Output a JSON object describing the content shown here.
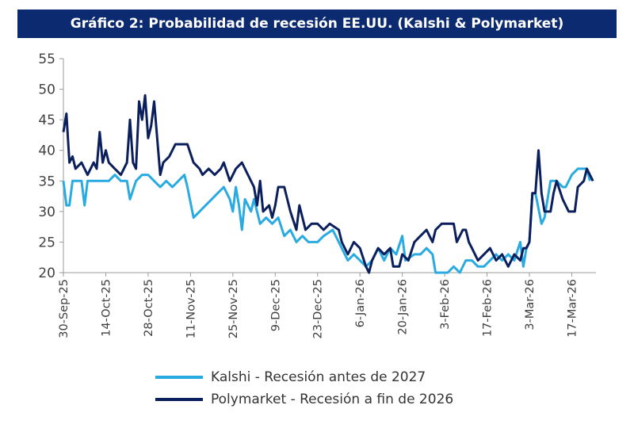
{
  "chart_data": {
    "type": "line",
    "title": "Gráfico 2: Probabilidad de recesión EE.UU. (Kalshi & Polymarket)",
    "xlabel": "",
    "ylabel": "",
    "ylim": [
      20,
      55
    ],
    "yticks": [
      "55",
      "50",
      "45",
      "40",
      "35",
      "30",
      "25",
      "20"
    ],
    "grid": false,
    "legend": "bottom",
    "x_tick_labels": [
      "30-Sep-25",
      "14-Oct-25",
      "28-Oct-25",
      "11-Nov-25",
      "25-Nov-25",
      "9-Dec-25",
      "23-Dec-25",
      "6-Jan-26",
      "20-Jan-26",
      "3-Feb-26",
      "17-Feb-26",
      "3-Mar-26",
      "17-Mar-26"
    ],
    "x_start": "2025-09-30",
    "x_end": "2026-03-25",
    "series": [
      {
        "name": "Kalshi - Recesión antes de 2027",
        "color": "#29abe2",
        "points": [
          [
            "2025-09-30",
            35
          ],
          [
            "2025-10-01",
            31
          ],
          [
            "2025-10-02",
            31
          ],
          [
            "2025-10-03",
            35
          ],
          [
            "2025-10-06",
            35
          ],
          [
            "2025-10-07",
            31
          ],
          [
            "2025-10-08",
            35
          ],
          [
            "2025-10-10",
            35
          ],
          [
            "2025-10-13",
            35
          ],
          [
            "2025-10-15",
            35
          ],
          [
            "2025-10-17",
            36
          ],
          [
            "2025-10-19",
            35
          ],
          [
            "2025-10-21",
            35
          ],
          [
            "2025-10-22",
            32
          ],
          [
            "2025-10-24",
            35
          ],
          [
            "2025-10-26",
            36
          ],
          [
            "2025-10-28",
            36
          ],
          [
            "2025-10-30",
            35
          ],
          [
            "2025-11-01",
            34
          ],
          [
            "2025-11-03",
            35
          ],
          [
            "2025-11-05",
            34
          ],
          [
            "2025-11-07",
            35
          ],
          [
            "2025-11-09",
            36
          ],
          [
            "2025-11-10",
            34
          ],
          [
            "2025-11-12",
            29
          ],
          [
            "2025-11-14",
            30
          ],
          [
            "2025-11-16",
            31
          ],
          [
            "2025-11-18",
            32
          ],
          [
            "2025-11-20",
            33
          ],
          [
            "2025-11-22",
            34
          ],
          [
            "2025-11-24",
            32
          ],
          [
            "2025-11-25",
            30
          ],
          [
            "2025-11-26",
            34
          ],
          [
            "2025-11-27",
            31
          ],
          [
            "2025-11-28",
            27
          ],
          [
            "2025-11-29",
            32
          ],
          [
            "2025-12-01",
            30
          ],
          [
            "2025-12-02",
            32
          ],
          [
            "2025-12-04",
            28
          ],
          [
            "2025-12-06",
            29
          ],
          [
            "2025-12-08",
            28
          ],
          [
            "2025-12-10",
            29
          ],
          [
            "2025-12-12",
            26
          ],
          [
            "2025-12-14",
            27
          ],
          [
            "2025-12-16",
            25
          ],
          [
            "2025-12-18",
            26
          ],
          [
            "2025-12-20",
            25
          ],
          [
            "2025-12-23",
            25
          ],
          [
            "2025-12-25",
            26
          ],
          [
            "2025-12-28",
            27
          ],
          [
            "2025-12-30",
            25
          ],
          [
            "2026-01-02",
            22
          ],
          [
            "2026-01-04",
            23
          ],
          [
            "2026-01-06",
            22
          ],
          [
            "2026-01-08",
            21
          ],
          [
            "2026-01-10",
            22
          ],
          [
            "2026-01-12",
            24
          ],
          [
            "2026-01-14",
            22
          ],
          [
            "2026-01-16",
            24
          ],
          [
            "2026-01-18",
            23
          ],
          [
            "2026-01-20",
            26
          ],
          [
            "2026-01-21",
            22
          ],
          [
            "2026-01-24",
            23
          ],
          [
            "2026-01-26",
            23
          ],
          [
            "2026-01-28",
            24
          ],
          [
            "2026-01-30",
            23
          ],
          [
            "2026-01-31",
            20
          ],
          [
            "2026-02-02",
            20
          ],
          [
            "2026-02-04",
            20
          ],
          [
            "2026-02-06",
            21
          ],
          [
            "2026-02-08",
            20
          ],
          [
            "2026-02-10",
            22
          ],
          [
            "2026-02-12",
            22
          ],
          [
            "2026-02-14",
            21
          ],
          [
            "2026-02-16",
            21
          ],
          [
            "2026-02-18",
            22
          ],
          [
            "2026-02-20",
            23
          ],
          [
            "2026-02-22",
            22
          ],
          [
            "2026-02-24",
            23
          ],
          [
            "2026-02-26",
            22
          ],
          [
            "2026-02-28",
            25
          ],
          [
            "2026-03-01",
            21
          ],
          [
            "2026-03-02",
            24
          ],
          [
            "2026-03-03",
            25
          ],
          [
            "2026-03-04",
            33
          ],
          [
            "2026-03-05",
            33
          ],
          [
            "2026-03-07",
            28
          ],
          [
            "2026-03-08",
            29
          ],
          [
            "2026-03-10",
            35
          ],
          [
            "2026-03-12",
            35
          ],
          [
            "2026-03-14",
            34
          ],
          [
            "2026-03-15",
            34
          ],
          [
            "2026-03-17",
            36
          ],
          [
            "2026-03-19",
            37
          ],
          [
            "2026-03-21",
            37
          ],
          [
            "2026-03-22",
            37
          ],
          [
            "2026-03-23",
            35
          ]
        ]
      },
      {
        "name": "Polymarket - Recesión a fin de 2026",
        "color": "#0b1f5c",
        "points": [
          [
            "2025-09-30",
            43
          ],
          [
            "2025-10-01",
            46
          ],
          [
            "2025-10-02",
            38
          ],
          [
            "2025-10-03",
            39
          ],
          [
            "2025-10-04",
            37
          ],
          [
            "2025-10-06",
            38
          ],
          [
            "2025-10-08",
            36
          ],
          [
            "2025-10-10",
            38
          ],
          [
            "2025-10-11",
            37
          ],
          [
            "2025-10-12",
            43
          ],
          [
            "2025-10-13",
            38
          ],
          [
            "2025-10-14",
            40
          ],
          [
            "2025-10-15",
            38
          ],
          [
            "2025-10-17",
            37
          ],
          [
            "2025-10-19",
            36
          ],
          [
            "2025-10-21",
            38
          ],
          [
            "2025-10-22",
            45
          ],
          [
            "2025-10-23",
            38
          ],
          [
            "2025-10-24",
            37
          ],
          [
            "2025-10-25",
            48
          ],
          [
            "2025-10-26",
            45
          ],
          [
            "2025-10-27",
            49
          ],
          [
            "2025-10-28",
            42
          ],
          [
            "2025-10-29",
            44
          ],
          [
            "2025-10-30",
            48
          ],
          [
            "2025-11-01",
            36
          ],
          [
            "2025-11-02",
            38
          ],
          [
            "2025-11-04",
            39
          ],
          [
            "2025-11-06",
            41
          ],
          [
            "2025-11-10",
            41
          ],
          [
            "2025-11-12",
            38
          ],
          [
            "2025-11-14",
            37
          ],
          [
            "2025-11-15",
            36
          ],
          [
            "2025-11-17",
            37
          ],
          [
            "2025-11-19",
            36
          ],
          [
            "2025-11-21",
            37
          ],
          [
            "2025-11-22",
            38
          ],
          [
            "2025-11-24",
            35
          ],
          [
            "2025-11-26",
            37
          ],
          [
            "2025-11-28",
            38
          ],
          [
            "2025-11-30",
            36
          ],
          [
            "2025-12-01",
            35
          ],
          [
            "2025-12-02",
            34
          ],
          [
            "2025-12-03",
            31
          ],
          [
            "2025-12-04",
            35
          ],
          [
            "2025-12-05",
            30
          ],
          [
            "2025-12-07",
            31
          ],
          [
            "2025-12-08",
            29
          ],
          [
            "2025-12-09",
            31
          ],
          [
            "2025-12-10",
            34
          ],
          [
            "2025-12-12",
            34
          ],
          [
            "2025-12-14",
            30
          ],
          [
            "2025-12-16",
            27
          ],
          [
            "2025-12-17",
            31
          ],
          [
            "2025-12-19",
            27
          ],
          [
            "2025-12-21",
            28
          ],
          [
            "2025-12-23",
            28
          ],
          [
            "2025-12-25",
            27
          ],
          [
            "2025-12-27",
            28
          ],
          [
            "2025-12-30",
            27
          ],
          [
            "2025-12-31",
            25
          ],
          [
            "2026-01-02",
            23
          ],
          [
            "2026-01-04",
            25
          ],
          [
            "2026-01-06",
            24
          ],
          [
            "2026-01-08",
            21
          ],
          [
            "2026-01-09",
            20
          ],
          [
            "2026-01-10",
            22
          ],
          [
            "2026-01-12",
            24
          ],
          [
            "2026-01-14",
            23
          ],
          [
            "2026-01-16",
            24
          ],
          [
            "2026-01-17",
            21
          ],
          [
            "2026-01-19",
            21
          ],
          [
            "2026-01-20",
            23
          ],
          [
            "2026-01-22",
            22
          ],
          [
            "2026-01-24",
            25
          ],
          [
            "2026-01-26",
            26
          ],
          [
            "2026-01-28",
            27
          ],
          [
            "2026-01-30",
            25
          ],
          [
            "2026-01-31",
            27
          ],
          [
            "2026-02-02",
            28
          ],
          [
            "2026-02-04",
            28
          ],
          [
            "2026-02-06",
            28
          ],
          [
            "2026-02-07",
            25
          ],
          [
            "2026-02-09",
            27
          ],
          [
            "2026-02-10",
            27
          ],
          [
            "2026-02-11",
            25
          ],
          [
            "2026-02-12",
            24
          ],
          [
            "2026-02-14",
            22
          ],
          [
            "2026-02-16",
            23
          ],
          [
            "2026-02-18",
            24
          ],
          [
            "2026-02-20",
            22
          ],
          [
            "2026-02-22",
            23
          ],
          [
            "2026-02-24",
            21
          ],
          [
            "2026-02-26",
            23
          ],
          [
            "2026-02-28",
            22
          ],
          [
            "2026-03-01",
            24
          ],
          [
            "2026-03-02",
            24
          ],
          [
            "2026-03-03",
            25
          ],
          [
            "2026-03-04",
            33
          ],
          [
            "2026-03-05",
            33
          ],
          [
            "2026-03-06",
            40
          ],
          [
            "2026-03-07",
            33
          ],
          [
            "2026-03-08",
            30
          ],
          [
            "2026-03-10",
            30
          ],
          [
            "2026-03-11",
            33
          ],
          [
            "2026-03-12",
            35
          ],
          [
            "2026-03-14",
            32
          ],
          [
            "2026-03-16",
            30
          ],
          [
            "2026-03-18",
            30
          ],
          [
            "2026-03-19",
            34
          ],
          [
            "2026-03-21",
            35
          ],
          [
            "2026-03-22",
            37
          ],
          [
            "2026-03-24",
            35
          ]
        ]
      }
    ]
  }
}
